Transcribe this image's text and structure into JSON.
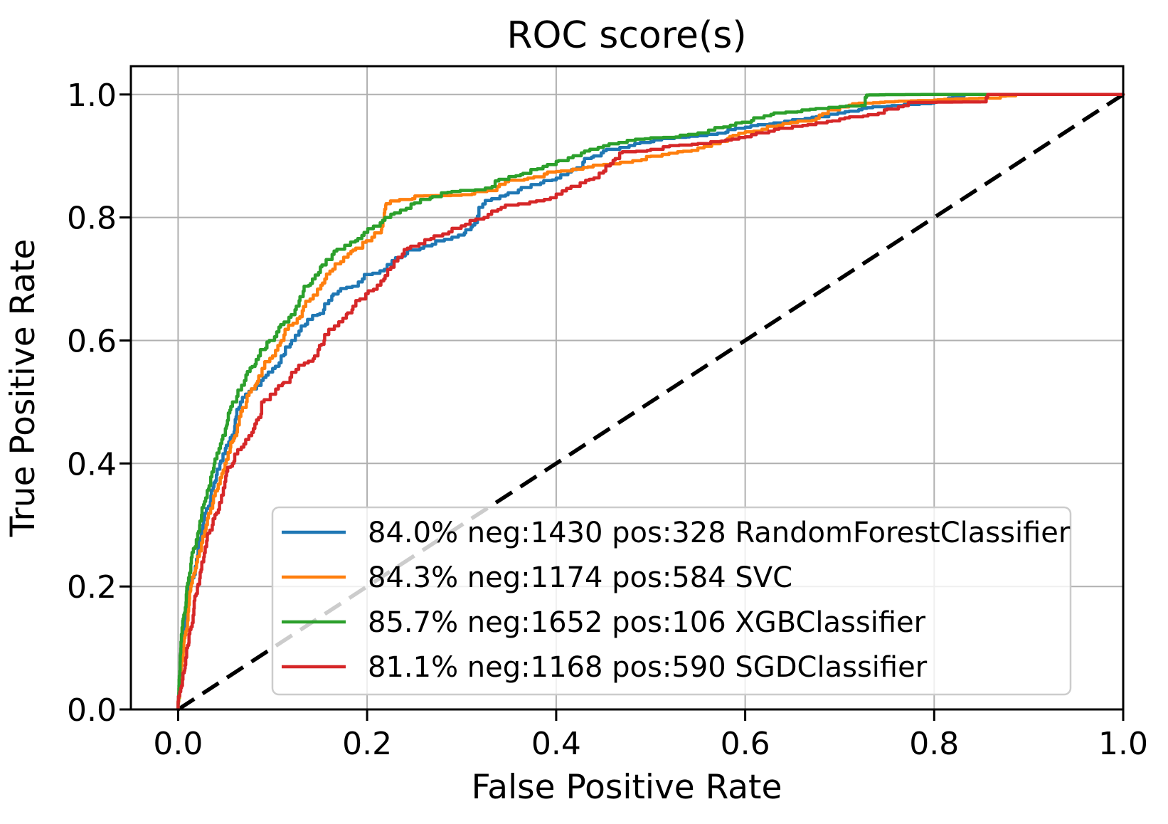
{
  "figure": {
    "title": "ROC score(s)",
    "xlabel": "False Positive Rate",
    "ylabel": "True Positive Rate"
  },
  "chart_data": {
    "type": "line",
    "title": "ROC score(s)",
    "xlabel": "False Positive Rate",
    "ylabel": "True Positive Rate",
    "xlim": [
      -0.05,
      1.0
    ],
    "ylim": [
      0.0,
      1.046
    ],
    "xticks": [
      "0.0",
      "0.2",
      "0.4",
      "0.6",
      "0.8",
      "1.0"
    ],
    "yticks": [
      "0.0",
      "0.2",
      "0.4",
      "0.6",
      "0.8",
      "1.0"
    ],
    "grid": true,
    "grid_color": "#b0b0b0",
    "background": "#ffffff",
    "legend_position": "lower right",
    "reference_line": {
      "name": "chance-diagonal",
      "from": [
        0,
        0
      ],
      "to": [
        1,
        1
      ],
      "color": "#000000",
      "style": "dashed"
    },
    "series": [
      {
        "name": "RandomForestClassifier",
        "legend_label": "84.0% neg:1430 pos:328 RandomForestClassifier",
        "auc_pct": "84.0%",
        "neg": 1430,
        "pos": 328,
        "color": "#1f77b4",
        "points": [
          [
            0,
            0
          ],
          [
            0.005,
            0.1
          ],
          [
            0.012,
            0.2
          ],
          [
            0.027,
            0.3
          ],
          [
            0.045,
            0.4
          ],
          [
            0.068,
            0.5
          ],
          [
            0.09,
            0.535
          ],
          [
            0.112,
            0.575
          ],
          [
            0.124,
            0.6
          ],
          [
            0.155,
            0.65
          ],
          [
            0.172,
            0.68
          ],
          [
            0.197,
            0.7
          ],
          [
            0.23,
            0.73
          ],
          [
            0.26,
            0.75
          ],
          [
            0.31,
            0.78
          ],
          [
            0.325,
            0.822
          ],
          [
            0.36,
            0.84
          ],
          [
            0.4,
            0.861
          ],
          [
            0.43,
            0.89
          ],
          [
            0.45,
            0.905
          ],
          [
            0.5,
            0.922
          ],
          [
            0.55,
            0.932
          ],
          [
            0.6,
            0.945
          ],
          [
            0.63,
            0.952
          ],
          [
            0.675,
            0.963
          ],
          [
            0.71,
            0.972
          ],
          [
            0.75,
            0.98
          ],
          [
            0.8,
            0.986
          ],
          [
            0.85,
            1.0
          ],
          [
            1.0,
            1.0
          ]
        ]
      },
      {
        "name": "SVC",
        "legend_label": "84.3% neg:1174 pos:584 SVC",
        "auc_pct": "84.3%",
        "neg": 1174,
        "pos": 584,
        "color": "#ff7f0e",
        "points": [
          [
            0,
            0
          ],
          [
            0.006,
            0.1
          ],
          [
            0.014,
            0.2
          ],
          [
            0.031,
            0.3
          ],
          [
            0.051,
            0.4
          ],
          [
            0.073,
            0.5
          ],
          [
            0.103,
            0.575
          ],
          [
            0.112,
            0.6
          ],
          [
            0.135,
            0.655
          ],
          [
            0.157,
            0.7
          ],
          [
            0.185,
            0.745
          ],
          [
            0.205,
            0.762
          ],
          [
            0.215,
            0.775
          ],
          [
            0.22,
            0.82
          ],
          [
            0.26,
            0.835
          ],
          [
            0.3,
            0.836
          ],
          [
            0.34,
            0.85
          ],
          [
            0.37,
            0.862
          ],
          [
            0.4,
            0.874
          ],
          [
            0.45,
            0.885
          ],
          [
            0.5,
            0.899
          ],
          [
            0.55,
            0.909
          ],
          [
            0.6,
            0.937
          ],
          [
            0.64,
            0.95
          ],
          [
            0.675,
            0.958
          ],
          [
            0.7,
            0.975
          ],
          [
            0.72,
            0.985
          ],
          [
            0.8,
            0.99
          ],
          [
            0.87,
            0.994
          ],
          [
            0.9,
            1.0
          ],
          [
            1.0,
            1.0
          ]
        ]
      },
      {
        "name": "XGBClassifier",
        "legend_label": "85.7% neg:1652 pos:106 XGBClassifier",
        "auc_pct": "85.7%",
        "neg": 1652,
        "pos": 106,
        "color": "#2ca02c",
        "points": [
          [
            0,
            0
          ],
          [
            0.003,
            0.1
          ],
          [
            0.01,
            0.2
          ],
          [
            0.023,
            0.3
          ],
          [
            0.039,
            0.4
          ],
          [
            0.062,
            0.5
          ],
          [
            0.087,
            0.575
          ],
          [
            0.102,
            0.6
          ],
          [
            0.125,
            0.65
          ],
          [
            0.145,
            0.7
          ],
          [
            0.165,
            0.74
          ],
          [
            0.19,
            0.762
          ],
          [
            0.225,
            0.8
          ],
          [
            0.25,
            0.822
          ],
          [
            0.285,
            0.84
          ],
          [
            0.325,
            0.845
          ],
          [
            0.35,
            0.862
          ],
          [
            0.38,
            0.878
          ],
          [
            0.4,
            0.886
          ],
          [
            0.43,
            0.905
          ],
          [
            0.45,
            0.914
          ],
          [
            0.5,
            0.928
          ],
          [
            0.55,
            0.935
          ],
          [
            0.59,
            0.95
          ],
          [
            0.62,
            0.962
          ],
          [
            0.66,
            0.972
          ],
          [
            0.7,
            0.979
          ],
          [
            0.727,
            0.982
          ],
          [
            0.731,
            0.999
          ],
          [
            0.8,
            1.0
          ],
          [
            1.0,
            1.0
          ]
        ]
      },
      {
        "name": "SGDClassifier",
        "legend_label": "81.1% neg:1168 pos:590 SGDClassifier",
        "auc_pct": "81.1%",
        "neg": 1168,
        "pos": 590,
        "color": "#d62728",
        "points": [
          [
            0,
            0
          ],
          [
            0.01,
            0.1
          ],
          [
            0.021,
            0.2
          ],
          [
            0.037,
            0.3
          ],
          [
            0.059,
            0.4
          ],
          [
            0.091,
            0.5
          ],
          [
            0.12,
            0.54
          ],
          [
            0.148,
            0.575
          ],
          [
            0.155,
            0.6
          ],
          [
            0.185,
            0.65
          ],
          [
            0.219,
            0.7
          ],
          [
            0.246,
            0.75
          ],
          [
            0.28,
            0.77
          ],
          [
            0.315,
            0.795
          ],
          [
            0.36,
            0.82
          ],
          [
            0.4,
            0.832
          ],
          [
            0.44,
            0.862
          ],
          [
            0.47,
            0.905
          ],
          [
            0.5,
            0.909
          ],
          [
            0.52,
            0.915
          ],
          [
            0.55,
            0.919
          ],
          [
            0.6,
            0.93
          ],
          [
            0.65,
            0.945
          ],
          [
            0.675,
            0.951
          ],
          [
            0.7,
            0.957
          ],
          [
            0.73,
            0.965
          ],
          [
            0.75,
            0.975
          ],
          [
            0.78,
            0.987
          ],
          [
            0.855,
            0.988
          ],
          [
            0.86,
            1.0
          ],
          [
            1.0,
            1.0
          ]
        ]
      }
    ]
  }
}
